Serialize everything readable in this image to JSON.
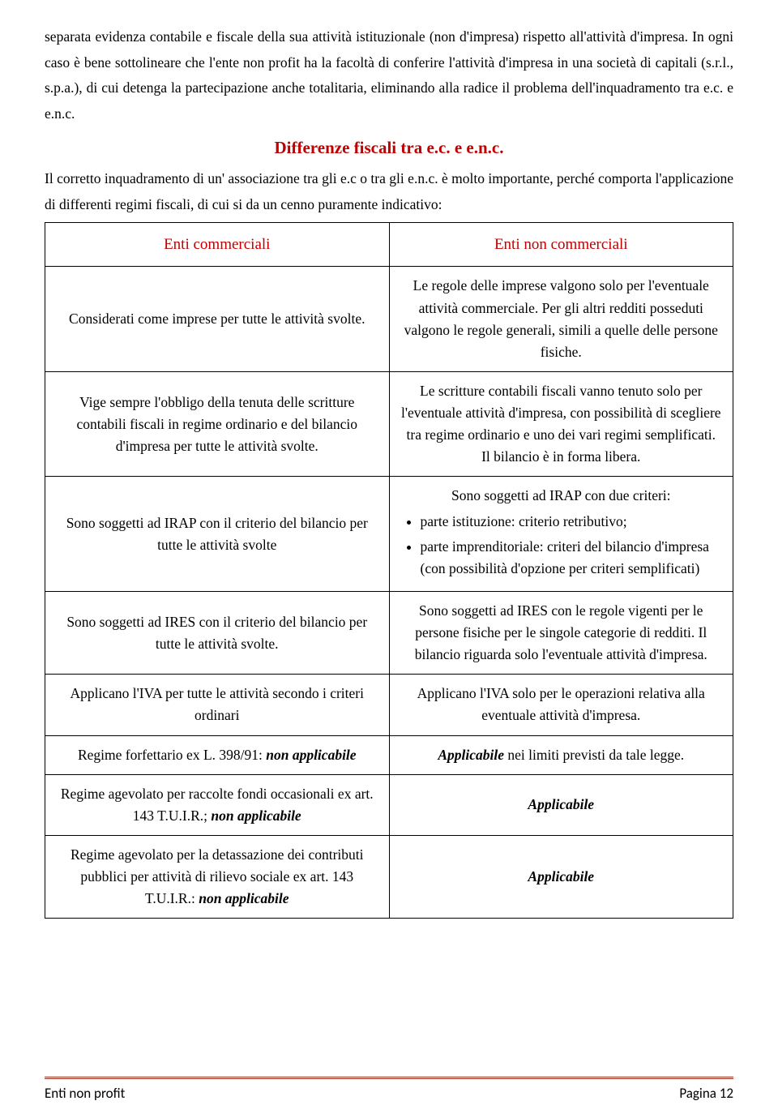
{
  "colors": {
    "heading_red": "#c00000",
    "table_header_red": "#c00000",
    "footer_rule": "#a03020",
    "text": "#000000",
    "background": "#ffffff",
    "border": "#000000"
  },
  "typography": {
    "body_family": "Times New Roman",
    "body_size_pt": 13,
    "heading_size_pt": 16,
    "footer_family": "Calibri",
    "footer_size_pt": 13
  },
  "intro": {
    "p1": "separata evidenza contabile e fiscale della sua attività istituzionale (non d'impresa) rispetto all'attività d'impresa. In ogni caso è bene sottolineare che l'ente non profit ha la facoltà di conferire l'attività d'impresa in una società di capitali (s.r.l., s.p.a.), di cui detenga la partecipazione anche totalitaria, eliminando alla radice il problema dell'inquadramento tra e.c. e e.n.c."
  },
  "heading": "Differenze fiscali tra e.c. e e.n.c.",
  "post_heading": "Il corretto inquadramento di un' associazione tra gli e.c o tra gli e.n.c. è molto importante, perché comporta l'applicazione di differenti regimi fiscali, di cui si da un cenno puramente indicativo:",
  "table": {
    "headers": {
      "left": "Enti commerciali",
      "right": "Enti non commerciali"
    },
    "rows": [
      {
        "left": "Considerati come imprese per tutte le attività svolte.",
        "right": "Le regole delle imprese valgono solo per l'eventuale attività commerciale. Per gli altri redditi posseduti valgono le regole generali, simili a quelle delle persone fisiche."
      },
      {
        "left": "Vige sempre l'obbligo della tenuta delle scritture contabili fiscali in regime ordinario e del bilancio d'impresa per tutte le attività svolte.",
        "right_pre": "Le scritture contabili fiscali vanno tenuto solo per l'eventuale attività d'impresa, con possibilità di scegliere tra regime ordinario e uno dei vari regimi semplificati.",
        "right_post": "Il bilancio è in forma libera."
      },
      {
        "left": "Sono soggetti ad IRAP con il criterio del bilancio per tutte le attività svolte",
        "right_intro": "Sono soggetti ad IRAP con due criteri:",
        "right_items": [
          "parte istituzione: criterio retributivo;",
          "parte imprenditoriale: criteri del bilancio d'impresa (con possibilità d'opzione per criteri semplificati)"
        ]
      },
      {
        "left": "Sono soggetti ad IRES con il criterio del bilancio per tutte le attività svolte.",
        "right": "Sono soggetti ad IRES con le regole vigenti per le persone fisiche per le singole categorie di redditi. Il bilancio riguarda solo l'eventuale attività d'impresa."
      },
      {
        "left": "Applicano l'IVA per tutte le attività secondo i criteri ordinari",
        "right": "Applicano l'IVA solo per le operazioni relativa alla eventuale attività d'impresa."
      },
      {
        "left_pre": "Regime forfettario ex L. 398/91: ",
        "left_em": "non applicabile",
        "right_em": "Applicabile",
        "right_post": " nei limiti previsti da tale legge."
      },
      {
        "left_pre": "Regime agevolato per raccolte fondi occasionali ex art. 143 T.U.I.R.; ",
        "left_em": "non applicabile",
        "right_em": "Applicabile"
      },
      {
        "left_pre": "Regime agevolato per la detassazione dei contributi pubblici per attività di rilievo sociale ex art. 143 T.U.I.R.: ",
        "left_em": "non applicabile",
        "right_em": "Applicabile"
      }
    ]
  },
  "footer": {
    "left": "Enti non profit",
    "right": "Pagina 12"
  }
}
